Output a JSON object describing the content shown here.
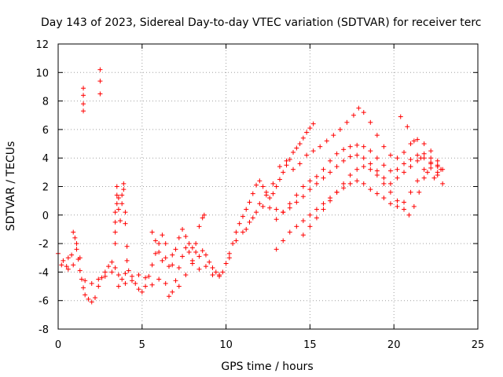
{
  "chart_data": {
    "type": "scatter",
    "title": "Day 143 of 2023, Sidereal Day-to-day VTEC variation (SDTVAR) for receiver terc",
    "xlabel": "GPS time / hours",
    "ylabel": "SDTVAR / TECUs",
    "xlim": [
      0,
      25
    ],
    "ylim": [
      -8,
      12
    ],
    "xticks": [
      0,
      5,
      10,
      15,
      20,
      25
    ],
    "yticks": [
      -8,
      -6,
      -4,
      -2,
      0,
      2,
      4,
      6,
      8,
      10,
      12
    ],
    "grid": true,
    "marker": "+",
    "color": "#ff0000",
    "series": [
      {
        "name": "SDTVAR",
        "points": [
          [
            0.0,
            -2.7
          ],
          [
            0.3,
            -3.2
          ],
          [
            0.5,
            -3.6
          ],
          [
            0.6,
            -3.0
          ],
          [
            0.8,
            -2.8
          ],
          [
            0.9,
            -1.2
          ],
          [
            1.0,
            -1.6
          ],
          [
            1.1,
            -2.4
          ],
          [
            1.2,
            -3.1
          ],
          [
            1.3,
            -3.9
          ],
          [
            1.4,
            -4.5
          ],
          [
            1.5,
            -5.1
          ],
          [
            1.6,
            -5.6
          ],
          [
            1.8,
            -5.9
          ],
          [
            2.0,
            -6.1
          ],
          [
            2.2,
            -5.8
          ],
          [
            2.4,
            -5.0
          ],
          [
            2.6,
            -4.4
          ],
          [
            2.8,
            -4.0
          ],
          [
            3.0,
            -3.6
          ],
          [
            3.2,
            -3.3
          ],
          [
            3.4,
            -3.7
          ],
          [
            3.6,
            -4.2
          ],
          [
            3.8,
            -4.5
          ],
          [
            4.0,
            -4.1
          ],
          [
            4.2,
            -3.9
          ],
          [
            4.4,
            -4.3
          ],
          [
            4.6,
            -4.8
          ],
          [
            4.8,
            -5.2
          ],
          [
            5.0,
            -5.4
          ],
          [
            5.2,
            -5.0
          ],
          [
            5.4,
            -4.3
          ],
          [
            5.6,
            -3.5
          ],
          [
            5.8,
            -2.7
          ],
          [
            6.0,
            -2.0
          ],
          [
            6.2,
            -3.2
          ],
          [
            6.4,
            -4.8
          ],
          [
            6.6,
            -5.7
          ],
          [
            6.8,
            -5.4
          ],
          [
            7.0,
            -4.6
          ],
          [
            7.2,
            -3.7
          ],
          [
            7.4,
            -2.9
          ],
          [
            7.6,
            -2.3
          ],
          [
            7.8,
            -2.0
          ],
          [
            8.0,
            -2.3
          ],
          [
            8.2,
            -2.6
          ],
          [
            8.4,
            -2.9
          ],
          [
            8.6,
            -2.5
          ],
          [
            8.8,
            -2.8
          ],
          [
            9.0,
            -3.3
          ],
          [
            9.2,
            -3.7
          ],
          [
            9.4,
            -4.0
          ],
          [
            9.6,
            -4.2
          ],
          [
            9.8,
            -4.0
          ],
          [
            10.0,
            -3.4
          ],
          [
            10.2,
            -2.7
          ],
          [
            10.4,
            -2.0
          ],
          [
            10.6,
            -1.2
          ],
          [
            10.8,
            -0.6
          ],
          [
            11.0,
            -0.1
          ],
          [
            11.2,
            0.4
          ],
          [
            11.4,
            0.9
          ],
          [
            11.6,
            1.5
          ],
          [
            11.8,
            2.1
          ],
          [
            12.0,
            2.4
          ],
          [
            12.2,
            2.0
          ],
          [
            12.4,
            1.6
          ],
          [
            12.6,
            1.2
          ],
          [
            12.8,
            1.5
          ],
          [
            13.0,
            2.0
          ],
          [
            13.2,
            2.5
          ],
          [
            13.4,
            3.0
          ],
          [
            13.6,
            3.5
          ],
          [
            13.8,
            3.9
          ],
          [
            14.0,
            4.4
          ],
          [
            14.2,
            4.7
          ],
          [
            14.4,
            5.0
          ],
          [
            14.6,
            5.4
          ],
          [
            14.8,
            5.8
          ],
          [
            15.0,
            6.1
          ],
          [
            15.2,
            6.4
          ],
          [
            0.2,
            -3.5
          ],
          [
            0.6,
            -3.8
          ],
          [
            0.9,
            -3.5
          ],
          [
            1.1,
            -2.0
          ],
          [
            1.3,
            -3.0
          ],
          [
            1.6,
            -4.6
          ],
          [
            2.0,
            -4.8
          ],
          [
            2.4,
            -4.5
          ],
          [
            2.8,
            -4.3
          ],
          [
            3.2,
            -4.0
          ],
          [
            3.6,
            -5.0
          ],
          [
            4.0,
            -4.8
          ],
          [
            4.4,
            -4.6
          ],
          [
            4.8,
            -4.2
          ],
          [
            5.2,
            -4.4
          ],
          [
            5.6,
            -4.9
          ],
          [
            6.0,
            -4.5
          ],
          [
            6.4,
            -3.0
          ],
          [
            6.8,
            -3.5
          ],
          [
            7.2,
            -5.0
          ],
          [
            7.6,
            -4.2
          ],
          [
            8.0,
            -3.4
          ],
          [
            8.4,
            -3.8
          ],
          [
            8.8,
            -3.6
          ],
          [
            9.2,
            -4.2
          ],
          [
            9.6,
            -4.3
          ],
          [
            10.2,
            -3.0
          ],
          [
            10.6,
            -1.8
          ],
          [
            11.0,
            -1.2
          ],
          [
            11.4,
            -0.5
          ],
          [
            11.8,
            0.2
          ],
          [
            12.2,
            0.6
          ],
          [
            12.6,
            0.5
          ],
          [
            13.0,
            0.4
          ],
          [
            13.4,
            0.2
          ],
          [
            13.8,
            0.5
          ],
          [
            14.2,
            0.9
          ],
          [
            14.6,
            1.3
          ],
          [
            15.0,
            1.8
          ],
          [
            15.4,
            2.2
          ],
          [
            15.8,
            2.6
          ],
          [
            16.2,
            3.0
          ],
          [
            16.6,
            3.4
          ],
          [
            17.0,
            3.8
          ],
          [
            17.4,
            4.1
          ],
          [
            17.8,
            4.2
          ],
          [
            18.2,
            4.0
          ],
          [
            18.6,
            3.6
          ],
          [
            19.0,
            3.1
          ],
          [
            19.4,
            2.6
          ],
          [
            19.8,
            2.2
          ],
          [
            20.2,
            2.6
          ],
          [
            20.6,
            3.0
          ],
          [
            21.0,
            3.4
          ],
          [
            21.4,
            3.8
          ],
          [
            21.8,
            4.0
          ],
          [
            22.2,
            3.6
          ],
          [
            22.6,
            2.8
          ],
          [
            22.9,
            2.2
          ],
          [
            11.2,
            -1.0
          ],
          [
            11.6,
            -0.2
          ],
          [
            12.0,
            0.8
          ],
          [
            12.4,
            1.4
          ],
          [
            12.8,
            2.2
          ],
          [
            13.2,
            3.4
          ],
          [
            13.6,
            3.8
          ],
          [
            14.0,
            3.2
          ],
          [
            14.4,
            3.6
          ],
          [
            14.8,
            4.2
          ],
          [
            15.2,
            4.5
          ],
          [
            15.6,
            4.8
          ],
          [
            16.0,
            5.2
          ],
          [
            16.4,
            5.6
          ],
          [
            16.8,
            6.0
          ],
          [
            17.2,
            6.5
          ],
          [
            17.6,
            7.0
          ],
          [
            17.9,
            7.5
          ],
          [
            18.2,
            7.2
          ],
          [
            18.6,
            6.5
          ],
          [
            19.0,
            5.6
          ],
          [
            19.4,
            4.8
          ],
          [
            19.8,
            4.2
          ],
          [
            20.2,
            4.0
          ],
          [
            20.6,
            4.4
          ],
          [
            21.0,
            5.0
          ],
          [
            21.4,
            5.3
          ],
          [
            21.8,
            5.0
          ],
          [
            22.2,
            4.5
          ],
          [
            22.6,
            3.8
          ],
          [
            22.9,
            3.2
          ],
          [
            13.0,
            -0.3
          ],
          [
            13.4,
            0.2
          ],
          [
            13.8,
            0.8
          ],
          [
            14.2,
            1.4
          ],
          [
            14.6,
            2.0
          ],
          [
            15.0,
            2.4
          ],
          [
            15.4,
            2.7
          ],
          [
            15.8,
            3.2
          ],
          [
            16.2,
            3.8
          ],
          [
            16.6,
            4.3
          ],
          [
            17.0,
            4.6
          ],
          [
            17.4,
            4.8
          ],
          [
            17.8,
            4.9
          ],
          [
            18.2,
            4.8
          ],
          [
            18.6,
            4.5
          ],
          [
            19.0,
            4.0
          ],
          [
            19.4,
            3.5
          ],
          [
            19.8,
            3.1
          ],
          [
            20.2,
            3.2
          ],
          [
            20.6,
            3.6
          ],
          [
            21.0,
            3.9
          ],
          [
            21.4,
            4.2
          ],
          [
            21.8,
            4.3
          ],
          [
            22.2,
            4.0
          ],
          [
            22.6,
            3.5
          ],
          [
            13.0,
            -2.4
          ],
          [
            13.4,
            -1.8
          ],
          [
            13.8,
            -1.2
          ],
          [
            14.2,
            -0.8
          ],
          [
            14.6,
            -0.4
          ],
          [
            15.0,
            0.0
          ],
          [
            15.4,
            0.4
          ],
          [
            15.8,
            0.8
          ],
          [
            16.2,
            1.2
          ],
          [
            16.6,
            1.6
          ],
          [
            17.0,
            1.9
          ],
          [
            17.4,
            2.2
          ],
          [
            17.8,
            2.4
          ],
          [
            18.2,
            2.2
          ],
          [
            18.6,
            1.8
          ],
          [
            19.0,
            1.5
          ],
          [
            19.4,
            1.2
          ],
          [
            19.8,
            0.8
          ],
          [
            20.2,
            0.6
          ],
          [
            20.6,
            0.9
          ],
          [
            21.0,
            1.6
          ],
          [
            21.4,
            2.4
          ],
          [
            21.8,
            3.2
          ],
          [
            22.2,
            3.7
          ],
          [
            22.6,
            3.4
          ],
          [
            14.6,
            -1.4
          ],
          [
            15.0,
            -0.8
          ],
          [
            15.4,
            -0.2
          ],
          [
            15.8,
            0.4
          ],
          [
            16.2,
            1.0
          ],
          [
            16.6,
            1.6
          ],
          [
            17.0,
            2.2
          ],
          [
            17.4,
            2.8
          ],
          [
            17.8,
            3.2
          ],
          [
            18.2,
            3.4
          ],
          [
            18.6,
            3.2
          ],
          [
            19.0,
            2.8
          ],
          [
            19.4,
            2.2
          ],
          [
            19.8,
            1.6
          ],
          [
            20.2,
            1.0
          ],
          [
            20.6,
            0.4
          ],
          [
            20.9,
            0.0
          ],
          [
            21.2,
            0.6
          ],
          [
            21.5,
            1.6
          ],
          [
            21.8,
            2.6
          ],
          [
            22.2,
            3.3
          ],
          [
            22.6,
            3.0
          ],
          [
            20.4,
            6.9
          ],
          [
            20.8,
            6.2
          ],
          [
            21.2,
            5.2
          ],
          [
            21.6,
            4.0
          ],
          [
            22.0,
            3.0
          ],
          [
            22.4,
            2.6
          ],
          [
            22.8,
            3.2
          ],
          [
            1.5,
            7.3
          ],
          [
            1.5,
            7.8
          ],
          [
            1.5,
            8.4
          ],
          [
            1.5,
            8.9
          ],
          [
            2.5,
            8.5
          ],
          [
            2.5,
            9.4
          ],
          [
            2.5,
            10.2
          ],
          [
            3.4,
            -2.0
          ],
          [
            3.4,
            -1.2
          ],
          [
            3.4,
            -0.5
          ],
          [
            3.4,
            0.2
          ],
          [
            3.5,
            0.8
          ],
          [
            3.5,
            1.4
          ],
          [
            3.5,
            2.0
          ],
          [
            3.6,
            1.2
          ],
          [
            3.6,
            0.4
          ],
          [
            3.7,
            -0.4
          ],
          [
            3.8,
            0.8
          ],
          [
            3.8,
            1.4
          ],
          [
            3.9,
            2.2
          ],
          [
            3.9,
            1.8
          ],
          [
            4.0,
            0.2
          ],
          [
            4.0,
            -0.6
          ],
          [
            4.1,
            -2.2
          ],
          [
            4.1,
            -3.2
          ],
          [
            5.6,
            -1.2
          ],
          [
            5.8,
            -1.8
          ],
          [
            6.0,
            -2.6
          ],
          [
            6.2,
            -1.4
          ],
          [
            6.4,
            -2.0
          ],
          [
            6.6,
            -3.6
          ],
          [
            6.8,
            -2.8
          ],
          [
            7.0,
            -2.4
          ],
          [
            7.2,
            -1.6
          ],
          [
            7.4,
            -1.0
          ],
          [
            7.6,
            -1.5
          ],
          [
            7.8,
            -2.6
          ],
          [
            8.0,
            -3.2
          ],
          [
            8.2,
            -2.0
          ],
          [
            8.4,
            -0.8
          ],
          [
            8.6,
            -0.2
          ],
          [
            8.7,
            0.0
          ]
        ]
      }
    ]
  }
}
